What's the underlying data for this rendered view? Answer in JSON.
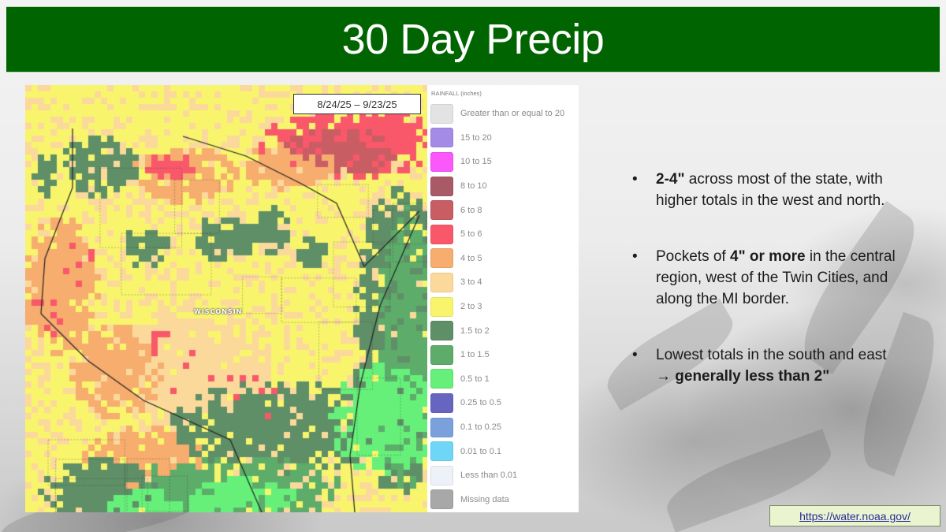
{
  "slide": {
    "title": "30 Day Precip",
    "title_bar_color": "#006400"
  },
  "map": {
    "date_range": "8/24/25 – 9/23/25",
    "state_label": "WISCONSIN"
  },
  "legend": {
    "title": "RAINFALL (inches)",
    "items": [
      {
        "label": "Greater than or equal to 20",
        "color": "#e3e3e3"
      },
      {
        "label": "15 to 20",
        "color": "#a48be6"
      },
      {
        "label": "10 to 15",
        "color": "#fb58fb"
      },
      {
        "label": "8 to 10",
        "color": "#a85a66"
      },
      {
        "label": "6 to 8",
        "color": "#c95d64"
      },
      {
        "label": "5 to 6",
        "color": "#f9586a"
      },
      {
        "label": "4 to 5",
        "color": "#f6ad6e"
      },
      {
        "label": "3 to 4",
        "color": "#fbd99b"
      },
      {
        "label": "2 to 3",
        "color": "#f8f56d"
      },
      {
        "label": "1.5 to 2",
        "color": "#5f8f67"
      },
      {
        "label": "1 to 1.5",
        "color": "#5dac6a"
      },
      {
        "label": "0.5 to 1",
        "color": "#66f07a"
      },
      {
        "label": "0.25 to 0.5",
        "color": "#6666c0"
      },
      {
        "label": "0.1 to 0.25",
        "color": "#7aa1dc"
      },
      {
        "label": "0.01 to 0.1",
        "color": "#6fd6f8"
      },
      {
        "label": "Less than 0.01",
        "color": "#edf1f8"
      },
      {
        "label": "Missing data",
        "color": "#a8a8a8"
      }
    ]
  },
  "bullets": [
    {
      "parts": [
        {
          "text": "2-4\"",
          "bold": true
        },
        {
          "text": " across most of the state, with higher totals in the west and north.",
          "bold": false
        }
      ]
    },
    {
      "parts": [
        {
          "text": "Pockets of ",
          "bold": false
        },
        {
          "text": "4\" or more",
          "bold": true
        },
        {
          "text": " in the central region, west of the Twin Cities, and along the MI border.",
          "bold": false
        }
      ]
    },
    {
      "parts": [
        {
          "text": "Lowest totals in the south and east → ",
          "bold": false
        },
        {
          "text": "generally less than 2\"",
          "bold": true
        }
      ]
    }
  ],
  "source": {
    "link_text": "https://water.noaa.gov/"
  }
}
